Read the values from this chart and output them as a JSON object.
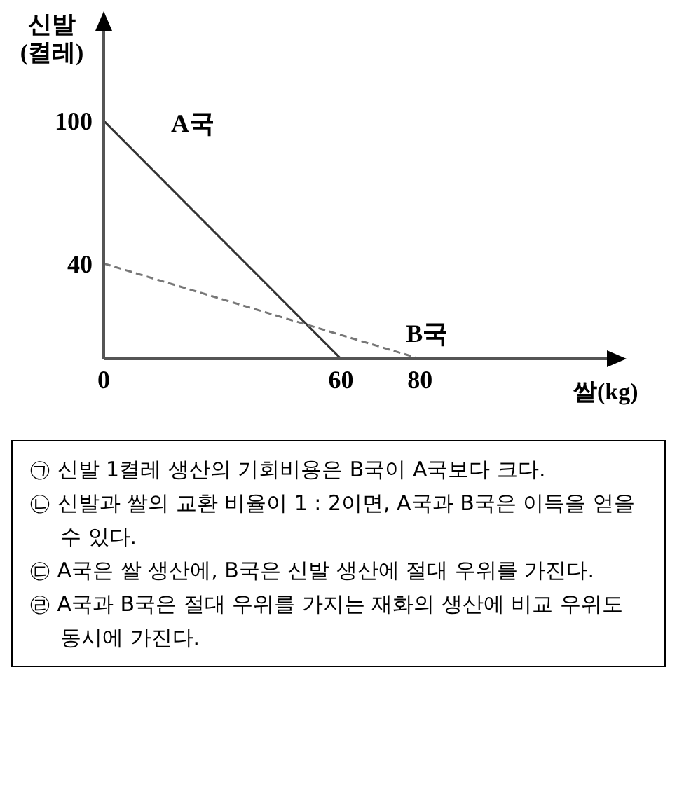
{
  "chart_data": {
    "type": "line",
    "xlabel": "쌀(kg)",
    "ylabel": "신발\n(켤레)",
    "xlim": [
      0,
      128
    ],
    "ylim": [
      0,
      139
    ],
    "xticks": [
      0,
      60,
      80
    ],
    "yticks": [
      40,
      100
    ],
    "grid": false,
    "legend": false,
    "marker": "none",
    "series": [
      {
        "name": "A국",
        "color": "#333333",
        "x": [
          0,
          60
        ],
        "values": [
          100,
          0
        ],
        "line_style": "solid"
      },
      {
        "name": "B국",
        "color": "#777777",
        "x": [
          0,
          80
        ],
        "values": [
          40,
          0
        ],
        "line_style": "dashed"
      }
    ],
    "annotations": [
      "㉠ 신발 1켤레 생산의 기회비용은 B국이 A국보다 크다.",
      "㉡ 신발과 쌀의 교환 비율이 1 : 2이면, A국과 B국은 이득을 얻을 수 있다.",
      "㉢ A국은 쌀 생산에, B국은 신발 생산에 절대 우위를 가진다.",
      "㉣ A국과 B국은 절대 우위를 가지는 재화의 생산에 비교 우위도 동시에 가진다."
    ]
  }
}
